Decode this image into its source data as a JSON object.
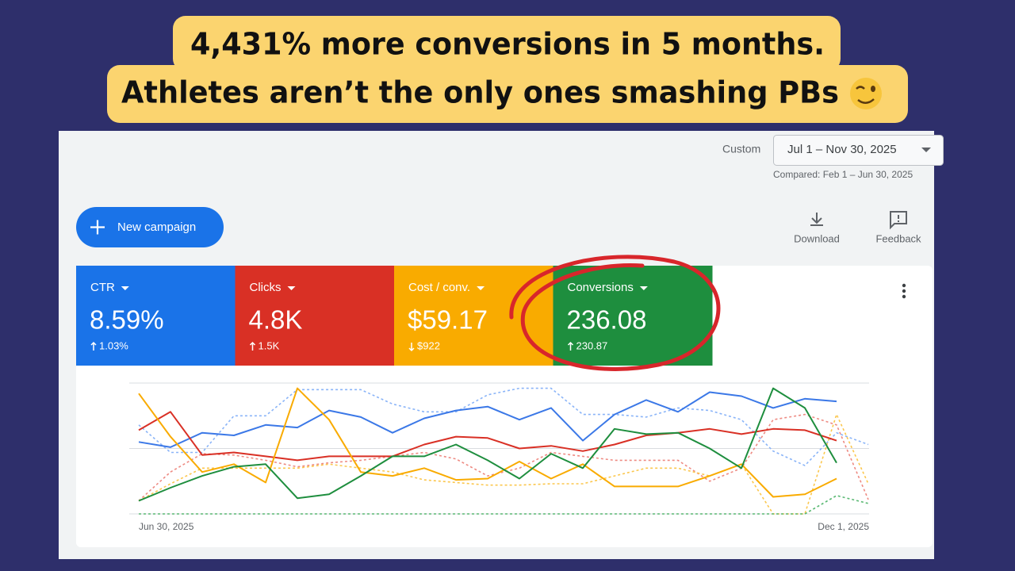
{
  "headline": [
    "4,431% more conversions in 5 months.",
    "Athletes aren’t the only ones smashing PBs"
  ],
  "date_range": {
    "label": "Custom",
    "value": "Jul 1 – Nov 30, 2025",
    "compared": "Compared: Feb 1 – Jun 30, 2025"
  },
  "new_campaign": "New campaign",
  "actions": [
    "Download",
    "Feedback"
  ],
  "metrics": [
    {
      "name": "CTR",
      "value": "8.59%",
      "change": "1.03%",
      "direction": "up",
      "color": "#1a73e8"
    },
    {
      "name": "Clicks",
      "value": "4.8K",
      "change": "1.5K",
      "direction": "up",
      "color": "#d93025"
    },
    {
      "name": "Cost / conv.",
      "value": "$59.17",
      "change": "$922",
      "direction": "down",
      "color": "#f9ab00"
    },
    {
      "name": "Conversions",
      "value": "236.08",
      "change": "230.87",
      "direction": "up",
      "color": "#1e8e3e"
    }
  ],
  "chart_data": {
    "type": "line",
    "categories": [
      "Jun 30, 2025",
      null,
      null,
      null,
      null,
      null,
      null,
      null,
      null,
      null,
      null,
      null,
      null,
      null,
      null,
      null,
      null,
      null,
      null,
      null,
      null,
      null,
      null,
      "Dec 1, 2025"
    ],
    "ylim": [
      0,
      100
    ],
    "gridlines": [
      0,
      50,
      100
    ],
    "series": [
      {
        "color": "#3b78e7",
        "dashed": false,
        "values": [
          55,
          51,
          62,
          60,
          68,
          66,
          79,
          74,
          62,
          73,
          79,
          82,
          72,
          81,
          56,
          76,
          87,
          78,
          93,
          90,
          81,
          88,
          86,
          null
        ]
      },
      {
        "color": "#d93025",
        "dashed": false,
        "values": [
          64,
          78,
          45,
          47,
          44,
          41,
          44,
          44,
          44,
          53,
          59,
          58,
          50,
          52,
          48,
          53,
          60,
          62,
          65,
          61,
          65,
          64,
          56,
          null
        ]
      },
      {
        "color": "#f9ab00",
        "dashed": false,
        "values": [
          92,
          59,
          32,
          38,
          24,
          96,
          72,
          32,
          29,
          35,
          26,
          27,
          40,
          27,
          38,
          21,
          21,
          21,
          29,
          38,
          13,
          15,
          27,
          null
        ]
      },
      {
        "color": "#1e8e3e",
        "dashed": false,
        "values": [
          10,
          20,
          29,
          36,
          38,
          12,
          15,
          29,
          44,
          44,
          53,
          41,
          27,
          46,
          35,
          65,
          61,
          62,
          50,
          35,
          96,
          81,
          39,
          null
        ]
      },
      {
        "color": "#8ab4f8",
        "dashed": true,
        "values": [
          68,
          47,
          47,
          75,
          75,
          95,
          95,
          95,
          84,
          78,
          78,
          91,
          96,
          96,
          76,
          76,
          74,
          81,
          79,
          72,
          48,
          37,
          62,
          53
        ]
      },
      {
        "color": "#ee8a82",
        "dashed": true,
        "values": [
          10,
          32,
          46,
          45,
          41,
          36,
          39,
          41,
          44,
          47,
          42,
          29,
          35,
          47,
          44,
          41,
          41,
          41,
          25,
          35,
          72,
          76,
          68,
          11
        ]
      },
      {
        "color": "#fbc74e",
        "dashed": true,
        "values": [
          10,
          23,
          35,
          35,
          35,
          35,
          38,
          35,
          32,
          26,
          24,
          22,
          22,
          23,
          23,
          29,
          35,
          35,
          29,
          38,
          0,
          0,
          76,
          23
        ]
      },
      {
        "color": "#5bb974",
        "dashed": true,
        "values": [
          0,
          0,
          0,
          0,
          0,
          0,
          0,
          0,
          0,
          0,
          0,
          0,
          0,
          0,
          0,
          0,
          0,
          0,
          0,
          0,
          0,
          0,
          14,
          8
        ]
      }
    ]
  }
}
